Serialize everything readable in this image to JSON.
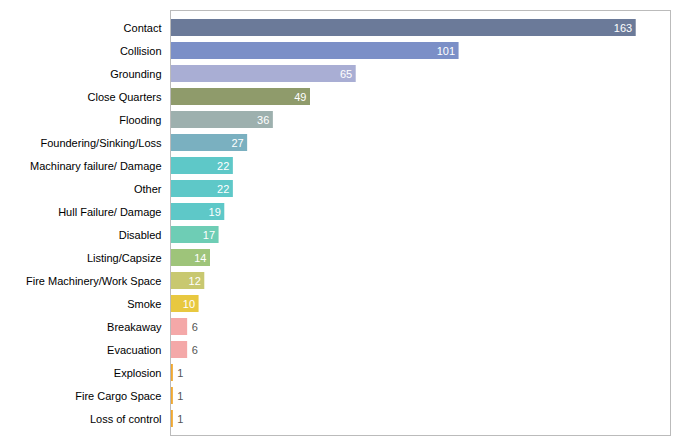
{
  "chart_data": {
    "type": "bar",
    "orientation": "horizontal",
    "categories": [
      "Contact",
      "Collision",
      "Grounding",
      "Close Quarters",
      "Flooding",
      "Foundering/Sinking/Loss",
      "Machinary failure/ Damage",
      "Other",
      "Hull Failure/ Damage",
      "Disabled",
      "Listing/Capsize",
      "Fire Machinery/Work Space",
      "Smoke",
      "Breakaway",
      "Evacuation",
      "Explosion",
      "Fire Cargo Space",
      "Loss of control"
    ],
    "values": [
      163,
      101,
      65,
      49,
      36,
      27,
      22,
      22,
      19,
      17,
      14,
      12,
      10,
      6,
      6,
      1,
      1,
      1
    ],
    "colors": [
      "#6b7a99",
      "#7b8fc7",
      "#a9aed4",
      "#8f9b6b",
      "#9db0ae",
      "#7ab0c0",
      "#5ec8c8",
      "#5ec8c8",
      "#5ec8c8",
      "#6ecdb5",
      "#9ec47a",
      "#c8c870",
      "#e8c840",
      "#f4a8a8",
      "#f4a8a8",
      "#f0a830",
      "#f0a830",
      "#f0a830"
    ],
    "xlim": [
      0,
      175
    ],
    "xticks": [],
    "data_labels": true,
    "tick_labels": "y",
    "grid": false
  }
}
